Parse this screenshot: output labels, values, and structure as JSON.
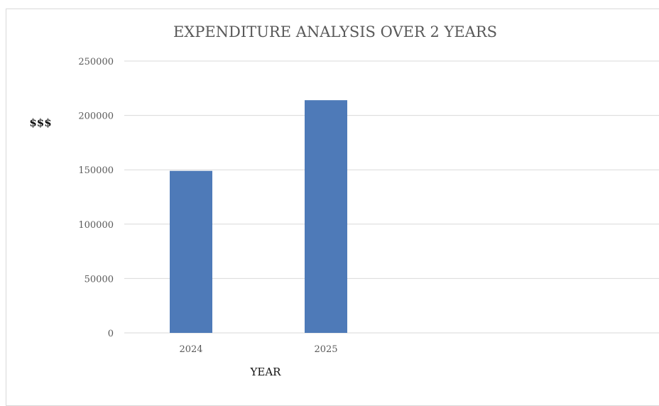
{
  "chart_data": {
    "type": "bar",
    "title": "EXPENDITURE ANALYSIS OVER 2 YEARS",
    "xlabel": "YEAR",
    "ylabel": "$$$",
    "categories": [
      "2024",
      "2025"
    ],
    "values": [
      149000,
      214000
    ],
    "ylim": [
      0,
      250000
    ],
    "yticks": [
      "0",
      "50000",
      "100000",
      "150000",
      "200000",
      "250000"
    ],
    "grid": true,
    "legend": "none",
    "colors": {
      "bar": "#4e7ab8",
      "grid": "#d9d9d9",
      "text": "#595959"
    }
  }
}
